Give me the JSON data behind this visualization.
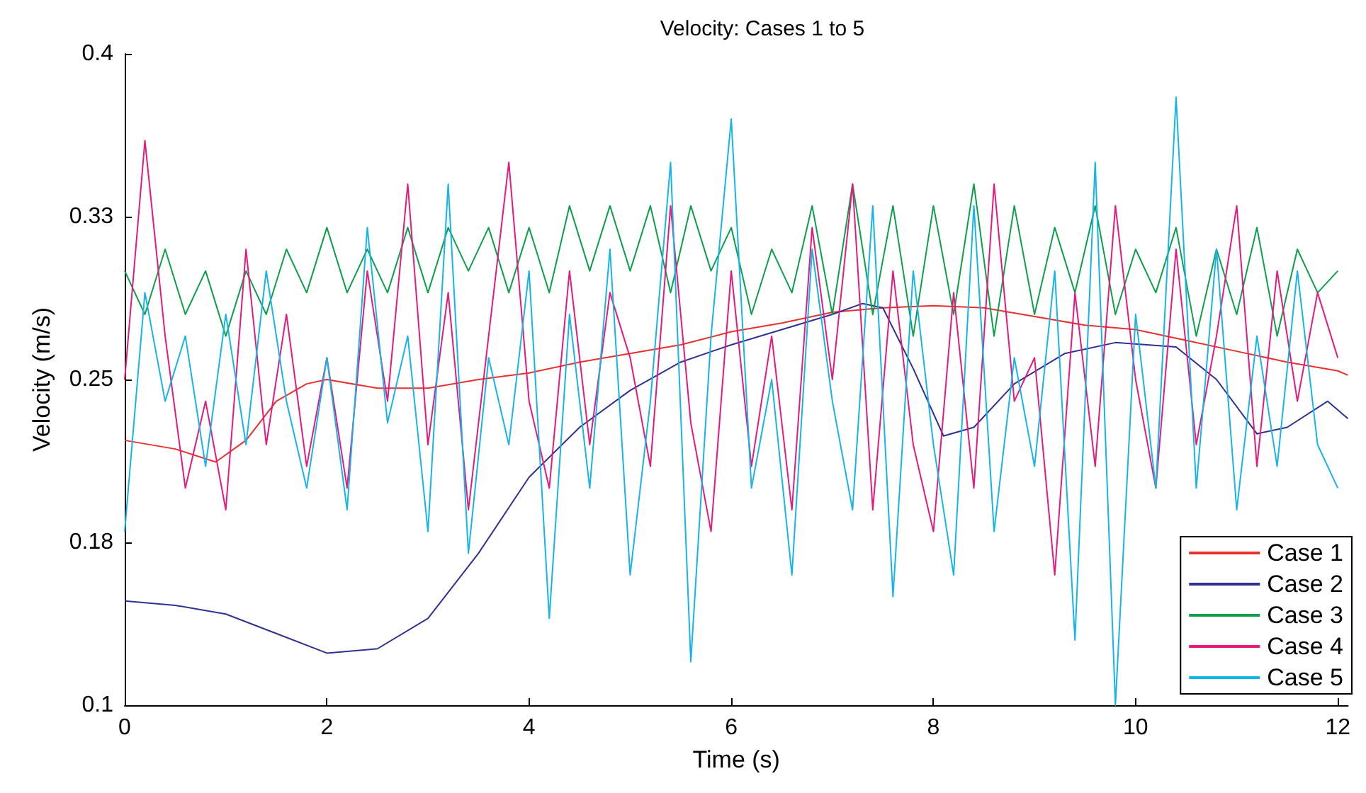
{
  "chart_data": {
    "type": "line",
    "title": "Velocity: Cases 1 to 5",
    "xlabel": "Time (s)",
    "ylabel": "Velocity (m/s)",
    "xlim": [
      0,
      12.1
    ],
    "xticks": [
      0,
      2,
      4,
      6,
      8,
      10,
      12
    ],
    "ylim": [
      0.1,
      0.4
    ],
    "yticks": [
      0.1,
      {
        "value": 0.175,
        "label": "0.18"
      },
      0.25,
      {
        "value": 0.325,
        "label": "0.33"
      },
      0.4
    ],
    "grid": false,
    "legend": "bottom right",
    "marker": "none",
    "x": [
      0,
      0.2,
      0.4,
      0.6,
      0.8,
      1.0,
      1.2,
      1.4,
      1.6,
      1.8,
      2.0,
      2.2,
      2.4,
      2.6,
      2.8,
      3.0,
      3.2,
      3.4,
      3.6,
      3.8,
      4.0,
      4.2,
      4.4,
      4.6,
      4.8,
      5.0,
      5.2,
      5.4,
      5.6,
      5.8,
      6.0,
      6.2,
      6.4,
      6.6,
      6.8,
      7.0,
      7.2,
      7.4,
      7.6,
      7.8,
      8.0,
      8.2,
      8.4,
      8.6,
      8.8,
      9.0,
      9.2,
      9.4,
      9.6,
      9.8,
      10.0,
      10.2,
      10.4,
      10.6,
      10.8,
      11.0,
      11.2,
      11.4,
      11.6,
      11.8,
      12.0
    ],
    "series": [
      {
        "name": "Case 1",
        "color": "#e8312a",
        "x": [
          0,
          0.5,
          0.9,
          1.2,
          1.5,
          1.8,
          2.0,
          2.5,
          3.0,
          3.5,
          4.0,
          4.5,
          5.0,
          5.5,
          6.0,
          6.5,
          7.0,
          7.5,
          8.0,
          8.5,
          9.0,
          9.5,
          10.0,
          10.5,
          11.0,
          11.5,
          12.0,
          12.1
        ],
        "values": [
          0.222,
          0.218,
          0.212,
          0.222,
          0.24,
          0.248,
          0.25,
          0.246,
          0.246,
          0.25,
          0.253,
          0.258,
          0.262,
          0.266,
          0.272,
          0.276,
          0.281,
          0.283,
          0.284,
          0.283,
          0.279,
          0.275,
          0.273,
          0.268,
          0.263,
          0.258,
          0.254,
          0.252
        ]
      },
      {
        "name": "Case 2",
        "color": "#2e3192",
        "x": [
          0,
          0.5,
          1.0,
          1.5,
          2.0,
          2.5,
          3.0,
          3.5,
          4.0,
          4.5,
          5.0,
          5.5,
          6.0,
          6.5,
          7.0,
          7.3,
          7.5,
          7.8,
          8.1,
          8.4,
          8.8,
          9.3,
          9.8,
          10.4,
          10.8,
          11.2,
          11.5,
          11.9,
          12.1
        ],
        "values": [
          0.148,
          0.146,
          0.142,
          0.133,
          0.124,
          0.126,
          0.14,
          0.17,
          0.205,
          0.228,
          0.245,
          0.258,
          0.266,
          0.273,
          0.28,
          0.285,
          0.283,
          0.255,
          0.224,
          0.228,
          0.248,
          0.262,
          0.267,
          0.265,
          0.25,
          0.225,
          0.228,
          0.24,
          0.232
        ]
      },
      {
        "name": "Case 3",
        "color": "#0ca04b",
        "values": [
          0.3,
          0.28,
          0.31,
          0.28,
          0.3,
          0.27,
          0.3,
          0.28,
          0.31,
          0.29,
          0.32,
          0.29,
          0.31,
          0.29,
          0.32,
          0.29,
          0.32,
          0.3,
          0.32,
          0.29,
          0.32,
          0.29,
          0.33,
          0.3,
          0.33,
          0.3,
          0.33,
          0.29,
          0.33,
          0.3,
          0.32,
          0.28,
          0.31,
          0.29,
          0.33,
          0.28,
          0.34,
          0.28,
          0.33,
          0.27,
          0.33,
          0.28,
          0.34,
          0.27,
          0.33,
          0.28,
          0.32,
          0.29,
          0.33,
          0.28,
          0.31,
          0.29,
          0.32,
          0.27,
          0.31,
          0.28,
          0.32,
          0.27,
          0.31,
          0.29,
          0.3
        ]
      },
      {
        "name": "Case 4",
        "color": "#e6197f",
        "values": [
          0.25,
          0.36,
          0.27,
          0.2,
          0.24,
          0.19,
          0.31,
          0.22,
          0.28,
          0.21,
          0.26,
          0.2,
          0.3,
          0.24,
          0.34,
          0.22,
          0.29,
          0.19,
          0.27,
          0.35,
          0.24,
          0.2,
          0.3,
          0.22,
          0.29,
          0.26,
          0.21,
          0.33,
          0.23,
          0.18,
          0.3,
          0.21,
          0.27,
          0.19,
          0.32,
          0.25,
          0.34,
          0.19,
          0.3,
          0.22,
          0.18,
          0.29,
          0.2,
          0.34,
          0.24,
          0.26,
          0.16,
          0.29,
          0.21,
          0.33,
          0.25,
          0.2,
          0.31,
          0.22,
          0.27,
          0.33,
          0.21,
          0.3,
          0.24,
          0.29,
          0.26
        ]
      },
      {
        "name": "Case 5",
        "color": "#16b4ec",
        "values": [
          0.18,
          0.29,
          0.24,
          0.27,
          0.21,
          0.28,
          0.22,
          0.3,
          0.24,
          0.2,
          0.26,
          0.19,
          0.32,
          0.23,
          0.27,
          0.18,
          0.34,
          0.17,
          0.26,
          0.22,
          0.3,
          0.14,
          0.28,
          0.2,
          0.31,
          0.16,
          0.24,
          0.35,
          0.12,
          0.27,
          0.37,
          0.2,
          0.25,
          0.16,
          0.31,
          0.24,
          0.19,
          0.33,
          0.15,
          0.3,
          0.22,
          0.16,
          0.33,
          0.18,
          0.26,
          0.21,
          0.3,
          0.13,
          0.35,
          0.1,
          0.28,
          0.2,
          0.38,
          0.2,
          0.31,
          0.19,
          0.27,
          0.21,
          0.3,
          0.22,
          0.2
        ]
      }
    ]
  }
}
